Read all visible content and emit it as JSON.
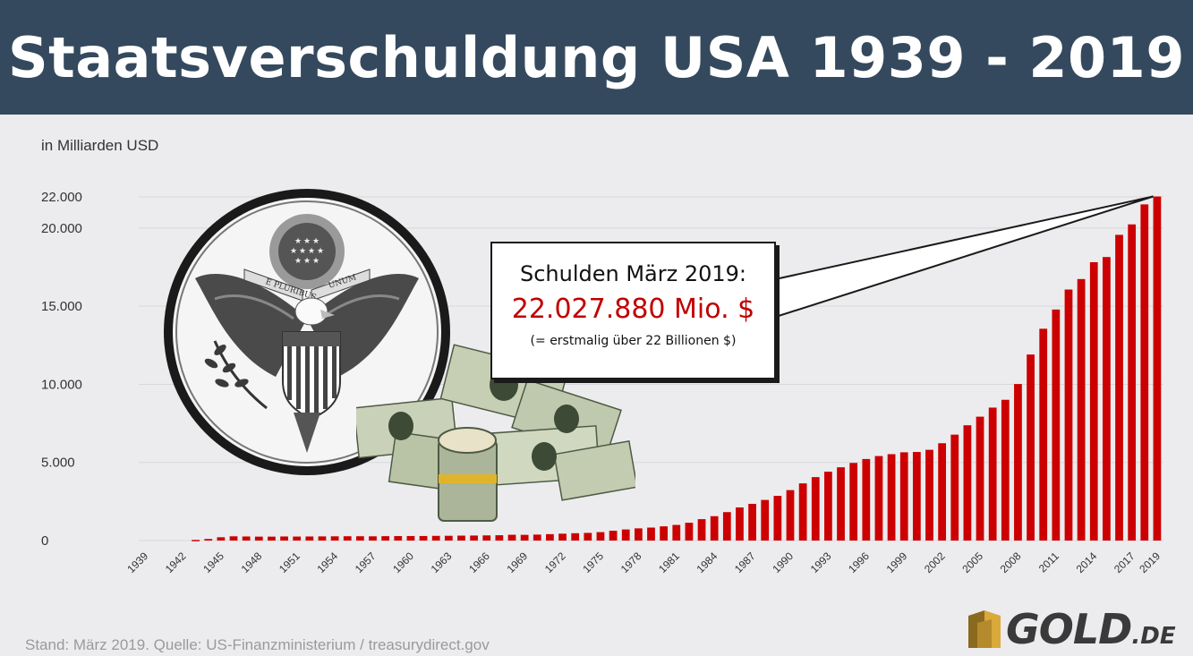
{
  "header": {
    "title": "Staatsverschuldung USA 1939 - 2019"
  },
  "chart_data": {
    "type": "bar",
    "title": "Staatsverschuldung USA 1939 - 2019",
    "ylabel": "in Milliarden USD",
    "xlabel": "",
    "ylim": [
      0,
      22000
    ],
    "yticks": [
      {
        "value": 0,
        "label": "0"
      },
      {
        "value": 5000,
        "label": "5.000"
      },
      {
        "value": 10000,
        "label": "10.000"
      },
      {
        "value": 15000,
        "label": "15.000"
      },
      {
        "value": 20000,
        "label": "20.000"
      },
      {
        "value": 22000,
        "label": "22.000"
      }
    ],
    "xtick_labels": [
      "1939",
      "1942",
      "1945",
      "1948",
      "1951",
      "1954",
      "1957",
      "1960",
      "1963",
      "1966",
      "1969",
      "1972",
      "1975",
      "1978",
      "1981",
      "1984",
      "1987",
      "1990",
      "1993",
      "1996",
      "1999",
      "2002",
      "2005",
      "2008",
      "2011",
      "2014",
      "2017",
      "2019"
    ],
    "grid": true,
    "bar_color": "#cc0000",
    "series": [
      {
        "x": [
          1939,
          1940,
          1941,
          1942,
          1943,
          1944,
          1945,
          1946,
          1947,
          1948,
          1949,
          1950,
          1951,
          1952,
          1953,
          1954,
          1955,
          1956,
          1957,
          1958,
          1959,
          1960,
          1961,
          1962,
          1963,
          1964,
          1965,
          1966,
          1967,
          1968,
          1969,
          1970,
          1971,
          1972,
          1973,
          1974,
          1975,
          1976,
          1977,
          1978,
          1979,
          1980,
          1981,
          1982,
          1983,
          1984,
          1985,
          1986,
          1987,
          1988,
          1989,
          1990,
          1991,
          1992,
          1993,
          1994,
          1995,
          1996,
          1997,
          1998,
          1999,
          2000,
          2001,
          2002,
          2003,
          2004,
          2005,
          2006,
          2007,
          2008,
          2009,
          2010,
          2011,
          2012,
          2013,
          2014,
          2015,
          2016,
          2017,
          2018,
          2019
        ],
        "values": [
          0,
          0,
          0,
          0,
          40,
          100,
          210,
          270,
          260,
          250,
          250,
          260,
          255,
          260,
          265,
          270,
          275,
          275,
          270,
          280,
          285,
          290,
          290,
          300,
          305,
          315,
          320,
          330,
          340,
          370,
          365,
          380,
          410,
          440,
          470,
          490,
          540,
          630,
          710,
          780,
          830,
          910,
          1000,
          1140,
          1370,
          1560,
          1820,
          2120,
          2350,
          2600,
          2860,
          3230,
          3660,
          4060,
          4410,
          4690,
          4970,
          5220,
          5410,
          5530,
          5650,
          5670,
          5810,
          6230,
          6780,
          7380,
          7930,
          8510,
          9010,
          10020,
          11910,
          13560,
          14790,
          16070,
          16740,
          17820,
          18150,
          19570,
          20240,
          21520,
          22028
        ]
      }
    ],
    "annotation": {
      "title": "Schulden März 2019:",
      "value": "22.027.880 Mio. $",
      "note": "(= erstmalig über 22 Billionen $)"
    }
  },
  "seal": {
    "banner_left": "E PLURIBUS",
    "banner_right": "UNUM",
    "icon": "great-seal-icon"
  },
  "money": {
    "icon": "dollar-bills-icon"
  },
  "footer": {
    "source": "Stand: März 2019. Quelle: US-Finanzministerium / treasurydirect.gov"
  },
  "logo": {
    "text": "GOLD",
    "tld": ".DE",
    "icon": "gold-bars-icon"
  },
  "colors": {
    "header_bg": "#34495e",
    "bar": "#cc0000",
    "background": "#ececee",
    "annotation_value": "#c00000"
  }
}
